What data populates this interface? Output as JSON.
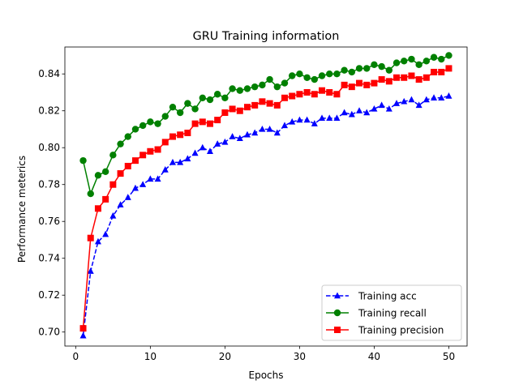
{
  "chart_data": {
    "type": "line",
    "title": "GRU Training information",
    "xlabel": "Epochs",
    "ylabel": "Performance meterics",
    "xlim": [
      -1.45,
      52.45
    ],
    "ylim": [
      0.6924,
      0.8546
    ],
    "xticks": [
      0,
      10,
      20,
      30,
      40,
      50
    ],
    "yticks": [
      0.7,
      0.72,
      0.74,
      0.76,
      0.78,
      0.8,
      0.82,
      0.84
    ],
    "ytick_labels": [
      "0.70",
      "0.72",
      "0.74",
      "0.76",
      "0.78",
      "0.80",
      "0.82",
      "0.84"
    ],
    "grid": false,
    "legend_position": "lower-right",
    "x": [
      1,
      2,
      3,
      4,
      5,
      6,
      7,
      8,
      9,
      10,
      11,
      12,
      13,
      14,
      15,
      16,
      17,
      18,
      19,
      20,
      21,
      22,
      23,
      24,
      25,
      26,
      27,
      28,
      29,
      30,
      31,
      32,
      33,
      34,
      35,
      36,
      37,
      38,
      39,
      40,
      41,
      42,
      43,
      44,
      45,
      46,
      47,
      48,
      49,
      50
    ],
    "series": [
      {
        "name": "Training acc",
        "color": "#0000ff",
        "marker": "triangle",
        "line_style": "dashed",
        "values": [
          0.698,
          0.733,
          0.749,
          0.753,
          0.763,
          0.769,
          0.773,
          0.778,
          0.78,
          0.783,
          0.783,
          0.788,
          0.792,
          0.792,
          0.794,
          0.797,
          0.8,
          0.798,
          0.802,
          0.803,
          0.806,
          0.805,
          0.807,
          0.808,
          0.81,
          0.81,
          0.808,
          0.812,
          0.814,
          0.815,
          0.815,
          0.813,
          0.816,
          0.816,
          0.816,
          0.819,
          0.818,
          0.82,
          0.819,
          0.821,
          0.823,
          0.821,
          0.824,
          0.825,
          0.826,
          0.823,
          0.826,
          0.827,
          0.827,
          0.828
        ]
      },
      {
        "name": "Training recall",
        "color": "#008000",
        "marker": "circle",
        "line_style": "solid",
        "values": [
          0.793,
          0.775,
          0.785,
          0.787,
          0.796,
          0.802,
          0.806,
          0.81,
          0.812,
          0.814,
          0.813,
          0.817,
          0.822,
          0.819,
          0.824,
          0.821,
          0.827,
          0.826,
          0.829,
          0.827,
          0.832,
          0.831,
          0.832,
          0.833,
          0.834,
          0.837,
          0.833,
          0.835,
          0.839,
          0.84,
          0.838,
          0.837,
          0.839,
          0.84,
          0.84,
          0.842,
          0.841,
          0.843,
          0.843,
          0.845,
          0.844,
          0.842,
          0.846,
          0.847,
          0.848,
          0.845,
          0.847,
          0.849,
          0.848,
          0.85
        ]
      },
      {
        "name": "Training precision",
        "color": "#ff0000",
        "marker": "square",
        "line_style": "solid",
        "values": [
          0.702,
          0.751,
          0.767,
          0.772,
          0.78,
          0.786,
          0.79,
          0.793,
          0.796,
          0.798,
          0.799,
          0.803,
          0.806,
          0.807,
          0.808,
          0.813,
          0.814,
          0.813,
          0.815,
          0.819,
          0.821,
          0.82,
          0.822,
          0.823,
          0.825,
          0.824,
          0.823,
          0.827,
          0.828,
          0.829,
          0.83,
          0.829,
          0.831,
          0.83,
          0.829,
          0.834,
          0.833,
          0.835,
          0.834,
          0.835,
          0.837,
          0.836,
          0.838,
          0.838,
          0.839,
          0.837,
          0.838,
          0.841,
          0.841,
          0.843
        ]
      }
    ]
  }
}
